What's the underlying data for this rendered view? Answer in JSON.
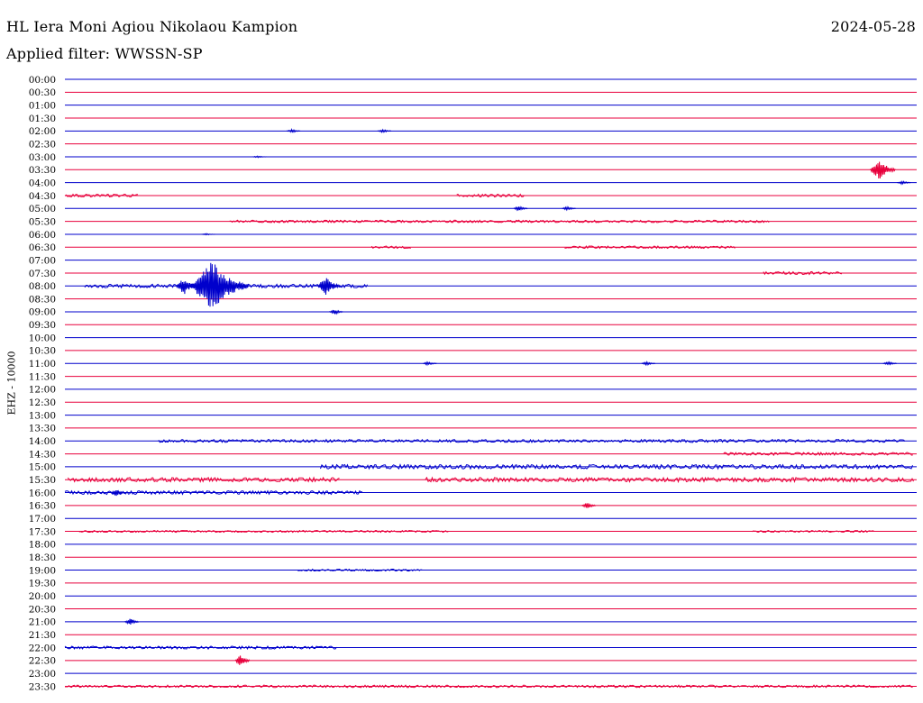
{
  "header": {
    "station": "HL Iera Moni Agiou Nikolaou Kampion",
    "date": "2024-05-28",
    "filter": "Applied filter: WWSSN-SP",
    "channel_label": "EHZ - 10000"
  },
  "colors": {
    "even_trace": "#0000cc",
    "odd_trace": "#e8003c"
  },
  "chart_data": {
    "type": "line",
    "title": "HL Iera Moni Agiou Nikolaou Kampion",
    "subtitle": "Applied filter: WWSSN-SP",
    "ylabel": "EHZ - 10000",
    "xlabel": "",
    "x_range_minutes": [
      0,
      30
    ],
    "row_labels": [
      "00:00",
      "00:30",
      "01:00",
      "01:30",
      "02:00",
      "02:30",
      "03:00",
      "03:30",
      "04:00",
      "04:30",
      "05:00",
      "05:30",
      "06:00",
      "06:30",
      "07:00",
      "07:30",
      "08:00",
      "08:30",
      "09:00",
      "09:30",
      "10:00",
      "10:30",
      "11:00",
      "11:30",
      "12:00",
      "12:30",
      "13:00",
      "13:30",
      "14:00",
      "14:30",
      "15:00",
      "15:30",
      "16:00",
      "16:30",
      "17:00",
      "17:30",
      "18:00",
      "18:30",
      "19:00",
      "19:30",
      "20:00",
      "20:30",
      "21:00",
      "21:30",
      "22:00",
      "22:30",
      "23:00",
      "23:30"
    ],
    "events": [
      {
        "row": "02:00",
        "minute": 8.0,
        "amp": 2
      },
      {
        "row": "02:00",
        "minute": 11.2,
        "amp": 2
      },
      {
        "row": "03:00",
        "minute": 6.8,
        "amp": 1
      },
      {
        "row": "03:30",
        "minute": 28.7,
        "amp": 12
      },
      {
        "row": "04:00",
        "minute": 29.5,
        "amp": 2
      },
      {
        "row": "05:00",
        "minute": 16.0,
        "amp": 3
      },
      {
        "row": "05:00",
        "minute": 17.7,
        "amp": 2
      },
      {
        "row": "06:00",
        "minute": 5.0,
        "amp": 1
      },
      {
        "row": "08:00",
        "minute": 4.2,
        "amp": 10
      },
      {
        "row": "08:00",
        "minute": 5.2,
        "amp": 28
      },
      {
        "row": "08:00",
        "minute": 9.2,
        "amp": 11
      },
      {
        "row": "09:00",
        "minute": 9.5,
        "amp": 3
      },
      {
        "row": "11:00",
        "minute": 12.8,
        "amp": 2
      },
      {
        "row": "11:00",
        "minute": 20.5,
        "amp": 2
      },
      {
        "row": "11:00",
        "minute": 29.0,
        "amp": 2
      },
      {
        "row": "16:00",
        "minute": 1.8,
        "amp": 4
      },
      {
        "row": "16:30",
        "minute": 18.4,
        "amp": 4
      },
      {
        "row": "21:00",
        "minute": 2.3,
        "amp": 4
      },
      {
        "row": "22:30",
        "minute": 6.2,
        "amp": 7
      }
    ],
    "noise_bands": [
      {
        "row": "04:30",
        "from": 0.0,
        "to": 2.6,
        "amp": 1.2
      },
      {
        "row": "04:30",
        "from": 13.8,
        "to": 16.2,
        "amp": 1.2
      },
      {
        "row": "05:30",
        "from": 5.8,
        "to": 24.8,
        "amp": 1.0
      },
      {
        "row": "06:30",
        "from": 10.8,
        "to": 12.2,
        "amp": 1.0
      },
      {
        "row": "06:30",
        "from": 17.6,
        "to": 23.6,
        "amp": 1.0
      },
      {
        "row": "07:30",
        "from": 24.6,
        "to": 27.4,
        "amp": 1.2
      },
      {
        "row": "08:00",
        "from": 0.7,
        "to": 10.7,
        "amp": 1.5
      },
      {
        "row": "14:00",
        "from": 3.3,
        "to": 29.6,
        "amp": 1.2
      },
      {
        "row": "14:30",
        "from": 23.2,
        "to": 29.9,
        "amp": 1.2
      },
      {
        "row": "15:00",
        "from": 9.0,
        "to": 29.9,
        "amp": 1.8
      },
      {
        "row": "15:30",
        "from": 0.1,
        "to": 9.7,
        "amp": 1.8
      },
      {
        "row": "15:30",
        "from": 12.7,
        "to": 29.9,
        "amp": 1.8
      },
      {
        "row": "16:00",
        "from": 0.0,
        "to": 10.5,
        "amp": 1.5
      },
      {
        "row": "17:30",
        "from": 0.5,
        "to": 13.5,
        "amp": 0.8
      },
      {
        "row": "17:30",
        "from": 24.2,
        "to": 28.5,
        "amp": 0.8
      },
      {
        "row": "19:00",
        "from": 8.2,
        "to": 12.6,
        "amp": 0.8
      },
      {
        "row": "22:00",
        "from": 0.0,
        "to": 9.6,
        "amp": 1.2
      },
      {
        "row": "23:30",
        "from": 0.0,
        "to": 29.9,
        "amp": 1.0
      }
    ]
  }
}
